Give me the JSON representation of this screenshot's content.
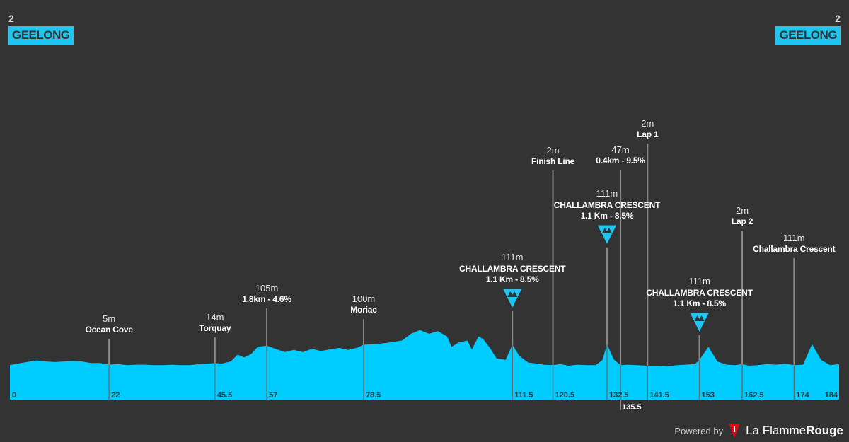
{
  "header": {
    "left": {
      "stage_number": "2",
      "town": "GEELONG"
    },
    "right": {
      "stage_number": "2",
      "town": "GEELONG"
    }
  },
  "footer": {
    "powered_by": "Powered by",
    "brand_light": "La Flamme",
    "brand_bold": "Rouge"
  },
  "colors": {
    "background": "#333333",
    "profile_fill": "#00ccff",
    "accent": "#1fc6f2",
    "marker_fill": "#1fc6f2",
    "brand_red": "#e30613"
  },
  "chart_data": {
    "type": "area",
    "title": "",
    "xlabel": "",
    "ylabel": "",
    "xlim": [
      0,
      184
    ],
    "x_ticks": [
      "0",
      "22",
      "45.5",
      "57",
      "78.5",
      "111.5",
      "120.5",
      "132.5",
      "135.5",
      "141.5",
      "153",
      "162.5",
      "174",
      "184"
    ],
    "x_tick_values": [
      0,
      22,
      45.5,
      57,
      78.5,
      111.5,
      120.5,
      132.5,
      135.5,
      141.5,
      153,
      162.5,
      174,
      184
    ],
    "profile": {
      "km": [
        0,
        3,
        6,
        8,
        10,
        12,
        14,
        16,
        18,
        20,
        22,
        24,
        26,
        28,
        30,
        32,
        34,
        36,
        38,
        40,
        42,
        44,
        45.5,
        47,
        49,
        50.5,
        52,
        53.5,
        55,
        57,
        59,
        61,
        63,
        65,
        67,
        69,
        71,
        73,
        75,
        77,
        78.5,
        81,
        84,
        87,
        89,
        91,
        93,
        95,
        97,
        98,
        99.5,
        100.5,
        101.5,
        102.5,
        104,
        105,
        106.5,
        108,
        110,
        111.5,
        113,
        115,
        117,
        118.5,
        120.5,
        122,
        124,
        126,
        128,
        130,
        131.5,
        132.5,
        134,
        135.5,
        137,
        139,
        141.5,
        144,
        146,
        148,
        150,
        152,
        153,
        155,
        157,
        159,
        161,
        162.5,
        164,
        166,
        168,
        170,
        172,
        174,
        176,
        178,
        180,
        182,
        184
      ],
      "elev": [
        5,
        10,
        14,
        12,
        11,
        12,
        13,
        12,
        9,
        9,
        6,
        7,
        5,
        6,
        6,
        5,
        5,
        6,
        5,
        5,
        7,
        8,
        9,
        8,
        12,
        25,
        20,
        26,
        40,
        42,
        36,
        30,
        34,
        30,
        36,
        32,
        35,
        38,
        34,
        38,
        44,
        45,
        48,
        52,
        65,
        72,
        65,
        70,
        60,
        40,
        48,
        50,
        52,
        35,
        60,
        55,
        38,
        18,
        15,
        44,
        23,
        10,
        8,
        6,
        5,
        7,
        4,
        6,
        5,
        5,
        15,
        45,
        16,
        5,
        6,
        5,
        4,
        4,
        3,
        5,
        6,
        7,
        15,
        40,
        12,
        6,
        5,
        7,
        4,
        5,
        7,
        6,
        8,
        5,
        6,
        45,
        15,
        5,
        7,
        6,
        3
      ]
    },
    "points": [
      {
        "km": 22,
        "alt": "5m",
        "name": "Ocean Cove"
      },
      {
        "km": 45.5,
        "alt": "14m",
        "name": "Torquay"
      },
      {
        "km": 57,
        "alt": "105m",
        "name": "1.8km - 4.6%"
      },
      {
        "km": 78.5,
        "alt": "100m",
        "name": "Moriac"
      },
      {
        "km": 111.5,
        "alt": "111m",
        "name": "CHALLAMBRA CRESCENT",
        "detail": "1.1 Km - 8.5%",
        "climb": true
      },
      {
        "km": 120.5,
        "alt": "2m",
        "name": "Finish Line"
      },
      {
        "km": 132.5,
        "alt": "111m",
        "name": "CHALLAMBRA CRESCENT",
        "detail": "1.1 Km - 8.5%",
        "climb": true
      },
      {
        "km": 135.5,
        "alt": "47m",
        "name": "0.4km - 9.5%"
      },
      {
        "km": 141.5,
        "alt": "2m",
        "name": "Lap 1"
      },
      {
        "km": 153,
        "alt": "111m",
        "name": "CHALLAMBRA CRESCENT",
        "detail": "1.1 Km - 8.5%",
        "climb": true
      },
      {
        "km": 162.5,
        "alt": "2m",
        "name": "Lap 2"
      },
      {
        "km": 174,
        "alt": "111m",
        "name": "Challambra Crescent"
      }
    ]
  }
}
